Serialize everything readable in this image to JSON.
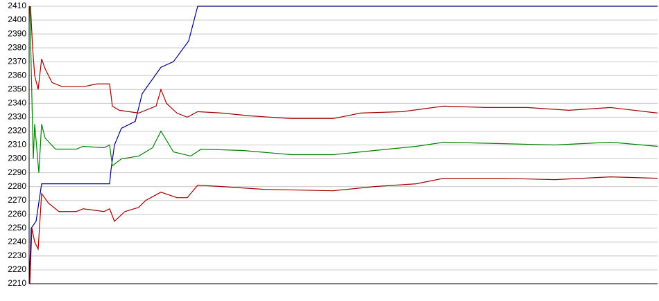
{
  "chart_data": {
    "type": "line",
    "xlim": [
      0,
      906
    ],
    "ylim": [
      2210,
      2410
    ],
    "yticks": [
      2210,
      2220,
      2230,
      2240,
      2250,
      2260,
      2270,
      2280,
      2290,
      2300,
      2310,
      2320,
      2330,
      2340,
      2350,
      2360,
      2370,
      2380,
      2390,
      2400,
      2410
    ],
    "grid": true,
    "series": [
      {
        "color": "#000080",
        "x": [
          0,
          3,
          10,
          18,
          116,
          118,
          123,
          133,
          153,
          163,
          190,
          208,
          230,
          243,
          906
        ],
        "values": [
          2210,
          2250,
          2255,
          2282,
          2282,
          2292,
          2310,
          2322,
          2327,
          2347,
          2366,
          2370,
          2385,
          2410,
          2410
        ]
      },
      {
        "color": "#a00000",
        "x": [
          2,
          5,
          8,
          13,
          18,
          23,
          33,
          48,
          78,
          98,
          116,
          120,
          130,
          158,
          183,
          190,
          198,
          213,
          228,
          243,
          278,
          318,
          378,
          438,
          478,
          538,
          598,
          658,
          718,
          778,
          838,
          906
        ],
        "values": [
          2410,
          2380,
          2360,
          2350,
          2372,
          2365,
          2355,
          2352,
          2352,
          2354,
          2354,
          2338,
          2335,
          2333,
          2338,
          2350,
          2340,
          2333,
          2330,
          2334,
          2333,
          2331,
          2329,
          2329,
          2333,
          2334,
          2338,
          2337,
          2337,
          2335,
          2337,
          2333
        ]
      },
      {
        "color": "#008000",
        "x": [
          1,
          6,
          8,
          14,
          18,
          23,
          38,
          68,
          78,
          108,
          116,
          120,
          133,
          158,
          178,
          190,
          208,
          233,
          248,
          308,
          378,
          438,
          498,
          558,
          598,
          678,
          758,
          838,
          906
        ],
        "values": [
          2410,
          2300,
          2325,
          2290,
          2325,
          2315,
          2307,
          2307,
          2309,
          2308,
          2310,
          2295,
          2300,
          2302,
          2308,
          2320,
          2305,
          2302,
          2307,
          2306,
          2303,
          2303,
          2306,
          2309,
          2312,
          2311,
          2310,
          2312,
          2309
        ]
      },
      {
        "color": "#a00000",
        "x": [
          1,
          4,
          8,
          13,
          18,
          28,
          43,
          68,
          78,
          108,
          116,
          123,
          138,
          158,
          168,
          190,
          213,
          228,
          243,
          278,
          338,
          438,
          498,
          558,
          598,
          678,
          758,
          838,
          906
        ],
        "values": [
          2210,
          2250,
          2240,
          2235,
          2275,
          2268,
          2262,
          2262,
          2264,
          2262,
          2264,
          2255,
          2262,
          2265,
          2270,
          2276,
          2272,
          2272,
          2281,
          2280,
          2278,
          2277,
          2280,
          2282,
          2286,
          2286,
          2285,
          2287,
          2286
        ]
      }
    ]
  }
}
